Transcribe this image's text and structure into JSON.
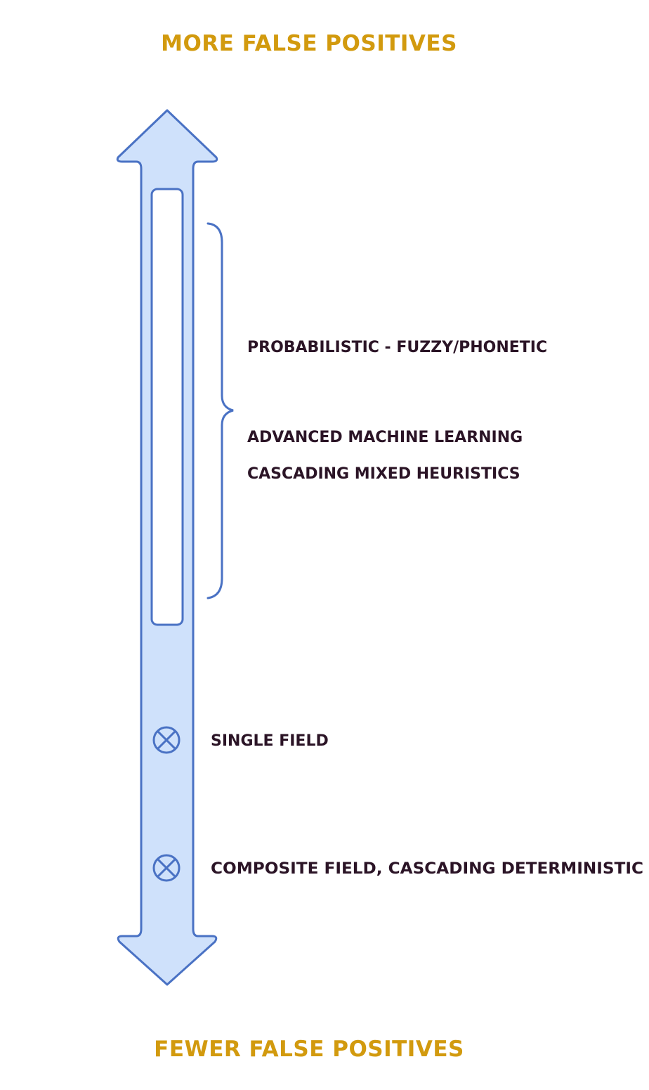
{
  "top_label": "MORE FALSE POSITIVES",
  "bottom_label": "FEWER FALSE POSITIVES",
  "range_labels": [
    "PROBABILISTIC - FUZZY/PHONETIC",
    "ADVANCED MACHINE LEARNING",
    "CASCADING MIXED HEURISTICS"
  ],
  "point_labels": [
    "SINGLE FIELD",
    "COMPOSITE FIELD, CASCADING DETERMINISTIC"
  ],
  "colors": {
    "heading": "#d29a0e",
    "text": "#2b1426",
    "arrow_fill": "#cfe1fb",
    "arrow_stroke": "#4a72c4"
  }
}
